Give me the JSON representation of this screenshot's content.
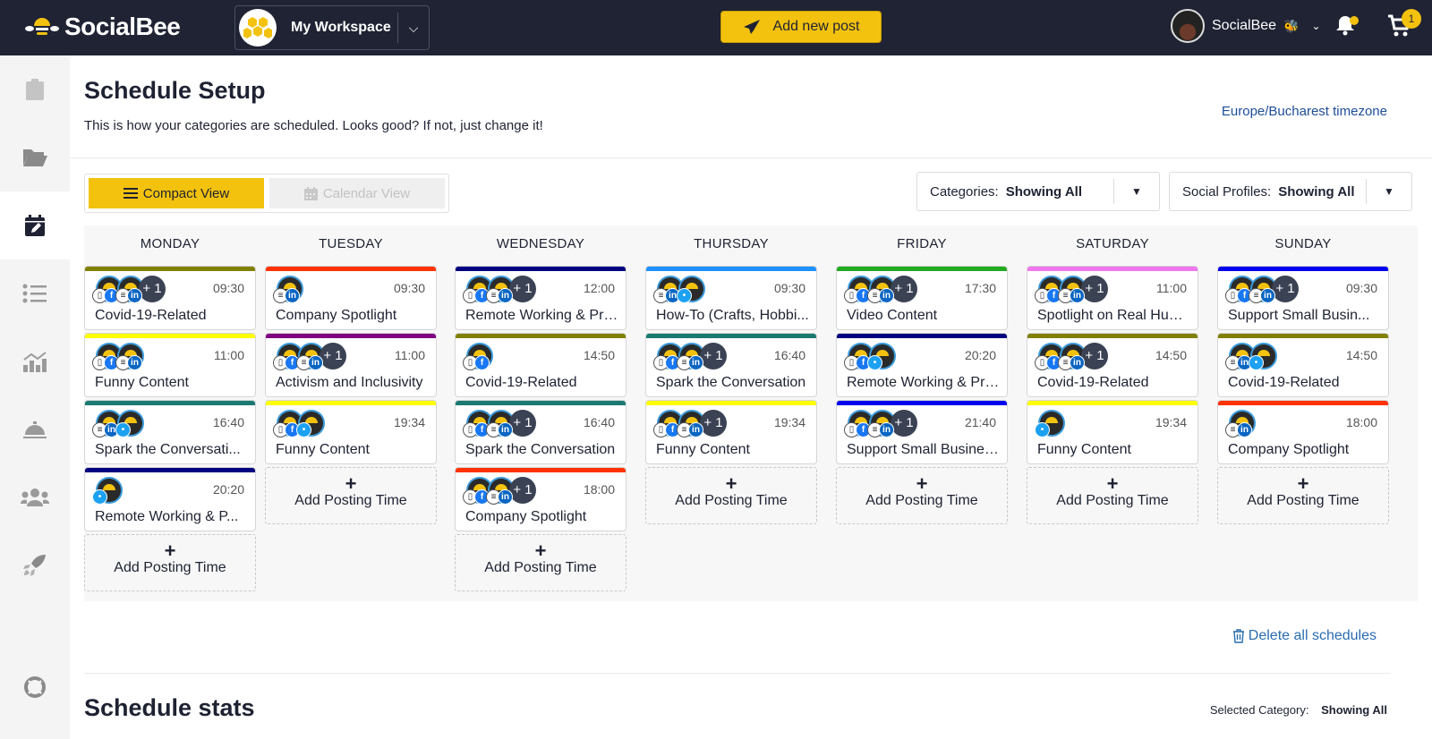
{
  "topbar": {
    "brand": "SocialBee",
    "workspace": "My Workspace",
    "add_post": "Add new post",
    "user_name": "SocialBee",
    "cart_count": "1"
  },
  "sidebar": {
    "items": [
      {
        "icon": "clipboard-icon",
        "active": false
      },
      {
        "icon": "folder-icon",
        "active": false
      },
      {
        "icon": "calendar-edit-icon",
        "active": true
      },
      {
        "icon": "list-icon",
        "active": false
      },
      {
        "icon": "analytics-icon",
        "active": false
      },
      {
        "icon": "concierge-bell-icon",
        "active": false
      },
      {
        "icon": "users-icon",
        "active": false
      },
      {
        "icon": "rocket-icon",
        "active": false
      },
      {
        "icon": "lifebuoy-icon",
        "active": false
      }
    ]
  },
  "page": {
    "title": "Schedule Setup",
    "subtitle": "This is how your categories are scheduled. Looks good? If not, just change it!",
    "timezone": "Europe/Bucharest timezone",
    "compact_view": "Compact View",
    "calendar_view": "Calendar View",
    "categories_label": "Categories:",
    "categories_value": "Showing All",
    "profiles_label": "Social Profiles:",
    "profiles_value": "Showing All",
    "add_posting_time": "Add Posting Time",
    "delete_all": "Delete all schedules",
    "stats_title": "Schedule stats",
    "selected_category_label": "Selected Category:",
    "selected_category_value": "Showing All"
  },
  "days": [
    {
      "name": "MONDAY",
      "slots": [
        {
          "time": "09:30",
          "category": "Covid-19-Related",
          "color": "#808000",
          "nets": [
            "phone",
            "fb",
            "buf",
            "li"
          ],
          "more": "+ 1"
        },
        {
          "time": "11:00",
          "category": "Funny Content",
          "color": "#ffff00",
          "nets": [
            "phone",
            "fb",
            "buf",
            "li"
          ],
          "more": ""
        },
        {
          "time": "16:40",
          "category": "Spark the Conversati...",
          "color": "#1a7a72",
          "nets": [
            "buf",
            "li",
            "tw"
          ],
          "more": ""
        },
        {
          "time": "20:20",
          "category": "Remote Working & P...",
          "color": "#000080",
          "nets": [
            "tw"
          ],
          "more": ""
        }
      ]
    },
    {
      "name": "TUESDAY",
      "slots": [
        {
          "time": "09:30",
          "category": "Company Spotlight",
          "color": "#ff3300",
          "nets": [
            "buf",
            "li"
          ],
          "more": ""
        },
        {
          "time": "11:00",
          "category": "Activism and Inclusivity",
          "color": "#800080",
          "nets": [
            "phone",
            "fb",
            "buf",
            "li"
          ],
          "more": "+ 1"
        },
        {
          "time": "19:34",
          "category": "Funny Content",
          "color": "#ffff00",
          "nets": [
            "phone",
            "fb",
            "tw"
          ],
          "more": ""
        }
      ]
    },
    {
      "name": "WEDNESDAY",
      "slots": [
        {
          "time": "12:00",
          "category": "Remote Working & Pro...",
          "color": "#000080",
          "nets": [
            "phone",
            "fb",
            "buf",
            "li"
          ],
          "more": "+ 1"
        },
        {
          "time": "14:50",
          "category": "Covid-19-Related",
          "color": "#808000",
          "nets": [
            "phone",
            "fb"
          ],
          "more": ""
        },
        {
          "time": "16:40",
          "category": "Spark the Conversation",
          "color": "#1a7a72",
          "nets": [
            "phone",
            "fb",
            "buf",
            "li"
          ],
          "more": "+ 1"
        },
        {
          "time": "18:00",
          "category": "Company Spotlight",
          "color": "#ff3300",
          "nets": [
            "phone",
            "fb",
            "buf",
            "li"
          ],
          "more": "+ 1"
        }
      ]
    },
    {
      "name": "THURSDAY",
      "slots": [
        {
          "time": "09:30",
          "category": "How-To (Crafts, Hobbi...",
          "color": "#1e90ff",
          "nets": [
            "buf",
            "li",
            "tw"
          ],
          "more": ""
        },
        {
          "time": "16:40",
          "category": "Spark the Conversation",
          "color": "#1a7a72",
          "nets": [
            "phone",
            "fb",
            "buf",
            "li"
          ],
          "more": "+ 1"
        },
        {
          "time": "19:34",
          "category": "Funny Content",
          "color": "#ffff00",
          "nets": [
            "phone",
            "fb",
            "buf",
            "li"
          ],
          "more": "+ 1"
        }
      ]
    },
    {
      "name": "FRIDAY",
      "slots": [
        {
          "time": "17:30",
          "category": "Video Content",
          "color": "#22aa22",
          "nets": [
            "phone",
            "fb",
            "buf",
            "li"
          ],
          "more": "+ 1"
        },
        {
          "time": "20:20",
          "category": "Remote Working & Pro...",
          "color": "#000080",
          "nets": [
            "phone",
            "fb",
            "tw"
          ],
          "more": ""
        },
        {
          "time": "21:40",
          "category": "Support Small Busines...",
          "color": "#0000ee",
          "nets": [
            "phone",
            "fb",
            "buf",
            "li"
          ],
          "more": "+ 1"
        }
      ]
    },
    {
      "name": "SATURDAY",
      "slots": [
        {
          "time": "11:00",
          "category": "Spotlight on Real Hum...",
          "color": "#ee77ee",
          "nets": [
            "phone",
            "fb",
            "buf",
            "li"
          ],
          "more": "+ 1"
        },
        {
          "time": "14:50",
          "category": "Covid-19-Related",
          "color": "#808000",
          "nets": [
            "phone",
            "fb",
            "buf",
            "li"
          ],
          "more": "+ 1"
        },
        {
          "time": "19:34",
          "category": "Funny Content",
          "color": "#ffff00",
          "nets": [
            "tw"
          ],
          "more": ""
        }
      ]
    },
    {
      "name": "SUNDAY",
      "slots": [
        {
          "time": "09:30",
          "category": "Support Small Busin...",
          "color": "#0000ee",
          "nets": [
            "phone",
            "fb",
            "buf",
            "li"
          ],
          "more": "+ 1"
        },
        {
          "time": "14:50",
          "category": "Covid-19-Related",
          "color": "#808000",
          "nets": [
            "buf",
            "li",
            "tw"
          ],
          "more": ""
        },
        {
          "time": "18:00",
          "category": "Company Spotlight",
          "color": "#ff3300",
          "nets": [
            "buf",
            "li"
          ],
          "more": ""
        }
      ]
    }
  ]
}
